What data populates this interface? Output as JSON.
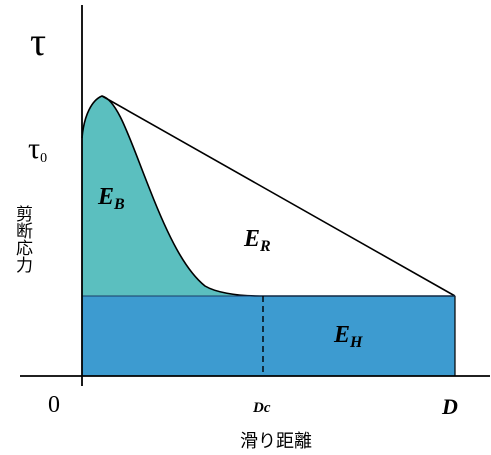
{
  "axes": {
    "y_symbol": "τ",
    "y_tick_tau0_main": "τ",
    "y_tick_tau0_sub": "0",
    "y_label": "剪断応力",
    "x_label": "滑り距離",
    "origin": "0",
    "x_tick_dc": "Dc",
    "x_tick_d": "D"
  },
  "regions": {
    "eb": {
      "main": "E",
      "sub": "B",
      "color": "#5bbfbf"
    },
    "er": {
      "main": "E",
      "sub": "R",
      "color": "#ffffff"
    },
    "eh": {
      "main": "E",
      "sub": "H",
      "color": "#3d9bd0"
    }
  }
}
